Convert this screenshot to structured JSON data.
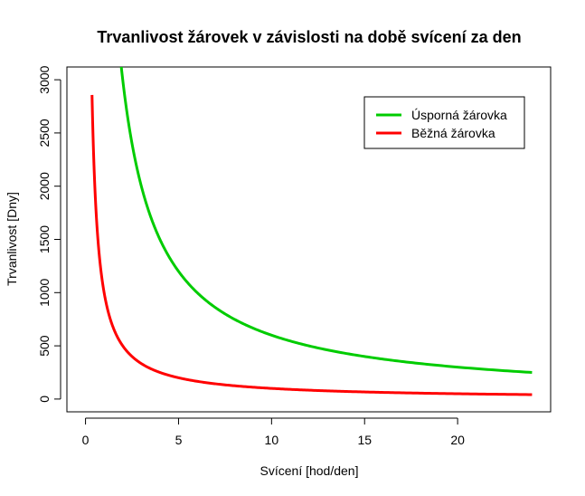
{
  "chart_data": {
    "type": "line",
    "title": "Trvanlivost žárovek v závislosti na době svícení za den",
    "xlabel": "Svícení [hod/den]",
    "ylabel": "Trvanlivost [Dny]",
    "xlim": [
      -1,
      25
    ],
    "ylim": [
      -120,
      3120
    ],
    "xticks": [
      0,
      5,
      10,
      15,
      20
    ],
    "yticks": [
      0,
      500,
      1000,
      1500,
      2000,
      2500,
      3000
    ],
    "x_range": [
      0.35,
      24
    ],
    "legend_position": "top-right",
    "series": [
      {
        "name": "Úsporná žárovka",
        "color": "#00cc00",
        "formula": "y = 6000 / x",
        "x": [
          2,
          3,
          4,
          5,
          6,
          8,
          10,
          12,
          15,
          20,
          24
        ],
        "values": [
          3000,
          2000,
          1500,
          1200,
          1000,
          750,
          600,
          500,
          400,
          300,
          250
        ]
      },
      {
        "name": "Běžná žárovka",
        "color": "#ff0000",
        "formula": "y = 1000 / x",
        "x": [
          0.35,
          0.5,
          1,
          2,
          3,
          5,
          10,
          15,
          20,
          24
        ],
        "values": [
          2857,
          2000,
          1000,
          500,
          333,
          200,
          100,
          67,
          50,
          42
        ]
      }
    ]
  }
}
